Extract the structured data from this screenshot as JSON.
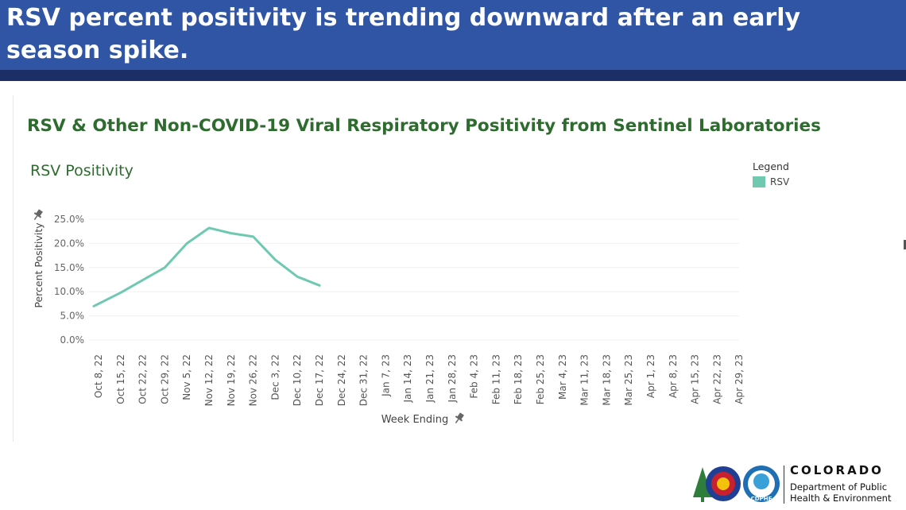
{
  "headline": "RSV percent positivity is trending downward after an early season spike.",
  "dashboard_title": "RSV & Other Non-COVID-19 Viral Respiratory Positivity from Sentinel Laboratories",
  "colors": {
    "banner": "#2f55a4",
    "banner_stripe": "#1b2f66",
    "title_green": "#2e6b2e",
    "rsv": "#6fc9b0"
  },
  "chart_data": {
    "type": "line",
    "title": "RSV Positivity",
    "xlabel": "Week Ending",
    "ylabel": "Percent Positivity",
    "categories": [
      "Oct 8, 22",
      "Oct 15, 22",
      "Oct 22, 22",
      "Oct 29, 22",
      "Nov 5, 22",
      "Nov 12, 22",
      "Nov 19, 22",
      "Nov 26, 22",
      "Dec 3, 22",
      "Dec 10, 22",
      "Dec 17, 22",
      "Dec 24, 22",
      "Dec 31, 22",
      "Jan 7, 23",
      "Jan 14, 23",
      "Jan 21, 23",
      "Jan 28, 23",
      "Feb 4, 23",
      "Feb 11, 23",
      "Feb 18, 23",
      "Feb 25, 23",
      "Mar 4, 23",
      "Mar 11, 23",
      "Mar 18, 23",
      "Mar 25, 23",
      "Apr 1, 23",
      "Apr 8, 23",
      "Apr 15, 23",
      "Apr 22, 23",
      "Apr 29, 23"
    ],
    "series": [
      {
        "name": "RSV",
        "values": [
          7.0,
          9.8,
          12.4,
          15.0,
          20.0,
          23.2,
          22.1,
          21.4,
          16.6,
          13.1,
          11.3,
          null,
          null,
          null,
          null,
          null,
          null,
          null,
          null,
          null,
          null,
          null,
          null,
          null,
          null,
          null,
          null,
          null,
          null,
          null
        ]
      }
    ],
    "yticks": [
      "0.0%",
      "5.0%",
      "10.0%",
      "15.0%",
      "20.0%",
      "25.0%"
    ],
    "ytick_values": [
      0,
      5,
      10,
      15,
      20,
      25
    ],
    "ylim": [
      0,
      25
    ],
    "grid": true,
    "legend": {
      "title": "Legend",
      "position": "top-right",
      "entries": [
        "RSV"
      ]
    }
  },
  "footer": {
    "state": "COLORADO",
    "department": "Department of Public Health & Environment",
    "logo_text": "CDPHE"
  }
}
